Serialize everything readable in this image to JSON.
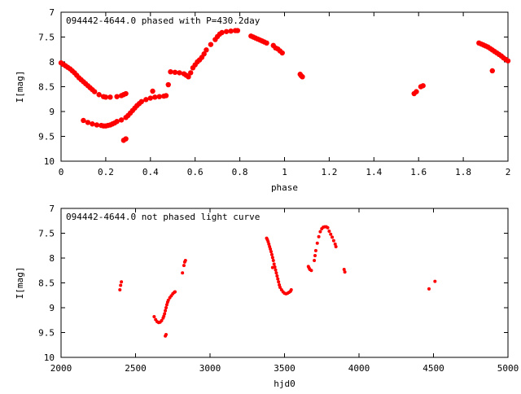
{
  "chart_data": [
    {
      "type": "scatter",
      "title": "094442-4644.0 phased with P=430.2day",
      "xlabel": "phase",
      "ylabel": "I[mag]",
      "xlim": [
        0,
        2
      ],
      "ylim": [
        7,
        10
      ],
      "y_inverted": true,
      "grid": false,
      "marker_color": "#ff0000",
      "x_ticks": [
        "0",
        "0.2",
        "0.4",
        "0.6",
        "0.8",
        "1",
        "1.2",
        "1.4",
        "1.6",
        "1.8",
        "2"
      ],
      "y_ticks": [
        "7",
        "7.5",
        "8",
        "8.5",
        "9",
        "9.5",
        "10"
      ],
      "points": [
        [
          0.0,
          8.02
        ],
        [
          0.01,
          8.05
        ],
        [
          0.02,
          8.08
        ],
        [
          0.03,
          8.11
        ],
        [
          0.04,
          8.14
        ],
        [
          0.05,
          8.18
        ],
        [
          0.06,
          8.22
        ],
        [
          0.07,
          8.27
        ],
        [
          0.08,
          8.32
        ],
        [
          0.09,
          8.36
        ],
        [
          0.1,
          8.4
        ],
        [
          0.11,
          8.44
        ],
        [
          0.12,
          8.48
        ],
        [
          0.13,
          8.52
        ],
        [
          0.14,
          8.56
        ],
        [
          0.15,
          8.6
        ],
        [
          0.17,
          8.66
        ],
        [
          0.19,
          8.7
        ],
        [
          0.2,
          8.71
        ],
        [
          0.22,
          8.71
        ],
        [
          0.25,
          8.7
        ],
        [
          0.27,
          8.68
        ],
        [
          0.28,
          8.66
        ],
        [
          0.29,
          8.64
        ],
        [
          0.1,
          9.18
        ],
        [
          0.12,
          9.22
        ],
        [
          0.14,
          9.25
        ],
        [
          0.16,
          9.27
        ],
        [
          0.18,
          9.28
        ],
        [
          0.19,
          9.29
        ],
        [
          0.2,
          9.29
        ],
        [
          0.21,
          9.28
        ],
        [
          0.22,
          9.27
        ],
        [
          0.23,
          9.25
        ],
        [
          0.24,
          9.23
        ],
        [
          0.25,
          9.2
        ],
        [
          0.27,
          9.17
        ],
        [
          0.29,
          9.12
        ],
        [
          0.3,
          9.08
        ],
        [
          0.31,
          9.03
        ],
        [
          0.32,
          8.98
        ],
        [
          0.33,
          8.93
        ],
        [
          0.34,
          8.88
        ],
        [
          0.35,
          8.84
        ],
        [
          0.36,
          8.8
        ],
        [
          0.38,
          8.76
        ],
        [
          0.4,
          8.73
        ],
        [
          0.42,
          8.71
        ],
        [
          0.44,
          8.7
        ],
        [
          0.46,
          8.69
        ],
        [
          0.47,
          8.68
        ],
        [
          0.28,
          9.58
        ],
        [
          0.29,
          9.55
        ],
        [
          0.41,
          8.59
        ],
        [
          0.48,
          8.46
        ],
        [
          0.49,
          8.2
        ],
        [
          0.51,
          8.21
        ],
        [
          0.53,
          8.22
        ],
        [
          0.55,
          8.24
        ],
        [
          0.56,
          8.27
        ],
        [
          0.57,
          8.3
        ],
        [
          0.58,
          8.22
        ],
        [
          0.59,
          8.12
        ],
        [
          0.6,
          8.06
        ],
        [
          0.61,
          8.0
        ],
        [
          0.62,
          7.96
        ],
        [
          0.63,
          7.91
        ],
        [
          0.64,
          7.84
        ],
        [
          0.65,
          7.76
        ],
        [
          0.67,
          7.65
        ],
        [
          0.69,
          7.55
        ],
        [
          0.7,
          7.49
        ],
        [
          0.71,
          7.44
        ],
        [
          0.72,
          7.41
        ],
        [
          0.74,
          7.39
        ],
        [
          0.76,
          7.38
        ],
        [
          0.78,
          7.37
        ],
        [
          0.79,
          7.37
        ],
        [
          0.85,
          7.48
        ],
        [
          0.86,
          7.5
        ],
        [
          0.87,
          7.52
        ],
        [
          0.88,
          7.54
        ],
        [
          0.89,
          7.56
        ],
        [
          0.9,
          7.58
        ],
        [
          0.91,
          7.6
        ],
        [
          0.92,
          7.62
        ],
        [
          0.95,
          7.67
        ],
        [
          0.96,
          7.72
        ],
        [
          0.97,
          7.74
        ],
        [
          0.98,
          7.78
        ],
        [
          0.99,
          7.82
        ],
        [
          1.07,
          8.25
        ],
        [
          1.075,
          8.28
        ],
        [
          1.08,
          8.3
        ],
        [
          1.58,
          8.64
        ],
        [
          1.59,
          8.6
        ],
        [
          1.61,
          8.5
        ],
        [
          1.62,
          8.48
        ],
        [
          1.87,
          7.62
        ],
        [
          1.88,
          7.64
        ],
        [
          1.89,
          7.66
        ],
        [
          1.9,
          7.68
        ],
        [
          1.91,
          7.7
        ],
        [
          1.92,
          7.73
        ],
        [
          1.93,
          7.76
        ],
        [
          1.94,
          7.79
        ],
        [
          1.95,
          7.82
        ],
        [
          1.96,
          7.85
        ],
        [
          1.97,
          7.88
        ],
        [
          1.98,
          7.92
        ],
        [
          1.99,
          7.95
        ],
        [
          2.0,
          7.98
        ],
        [
          1.93,
          8.18
        ]
      ]
    },
    {
      "type": "scatter",
      "title": "094442-4644.0 not phased light curve",
      "xlabel": "hjd0",
      "ylabel": "I[mag]",
      "xlim": [
        2000,
        5000
      ],
      "ylim": [
        7,
        10
      ],
      "y_inverted": true,
      "grid": false,
      "marker_color": "#ff0000",
      "x_ticks": [
        "2000",
        "2500",
        "3000",
        "3500",
        "4000",
        "4500",
        "5000"
      ],
      "y_ticks": [
        "7",
        "7.5",
        "8",
        "8.5",
        "9",
        "9.5",
        "10"
      ],
      "points": [
        [
          2395,
          8.64
        ],
        [
          2400,
          8.55
        ],
        [
          2405,
          8.48
        ],
        [
          2625,
          9.18
        ],
        [
          2635,
          9.24
        ],
        [
          2645,
          9.28
        ],
        [
          2655,
          9.3
        ],
        [
          2665,
          9.29
        ],
        [
          2675,
          9.26
        ],
        [
          2685,
          9.21
        ],
        [
          2690,
          9.17
        ],
        [
          2695,
          9.12
        ],
        [
          2700,
          9.06
        ],
        [
          2705,
          9.0
        ],
        [
          2710,
          8.94
        ],
        [
          2715,
          8.89
        ],
        [
          2720,
          8.85
        ],
        [
          2730,
          8.8
        ],
        [
          2740,
          8.76
        ],
        [
          2750,
          8.72
        ],
        [
          2760,
          8.69
        ],
        [
          2765,
          8.68
        ],
        [
          2700,
          9.57
        ],
        [
          2705,
          9.54
        ],
        [
          2815,
          8.3
        ],
        [
          2825,
          8.15
        ],
        [
          2830,
          8.08
        ],
        [
          2835,
          8.05
        ],
        [
          3380,
          7.6
        ],
        [
          3385,
          7.63
        ],
        [
          3390,
          7.67
        ],
        [
          3395,
          7.72
        ],
        [
          3400,
          7.77
        ],
        [
          3405,
          7.82
        ],
        [
          3410,
          7.87
        ],
        [
          3415,
          7.93
        ],
        [
          3420,
          7.99
        ],
        [
          3425,
          8.05
        ],
        [
          3430,
          8.12
        ],
        [
          3435,
          8.18
        ],
        [
          3440,
          8.24
        ],
        [
          3445,
          8.3
        ],
        [
          3450,
          8.36
        ],
        [
          3455,
          8.42
        ],
        [
          3460,
          8.48
        ],
        [
          3465,
          8.54
        ],
        [
          3470,
          8.59
        ],
        [
          3480,
          8.64
        ],
        [
          3490,
          8.68
        ],
        [
          3500,
          8.71
        ],
        [
          3510,
          8.72
        ],
        [
          3520,
          8.71
        ],
        [
          3530,
          8.69
        ],
        [
          3540,
          8.67
        ],
        [
          3545,
          8.64
        ],
        [
          3420,
          8.19
        ],
        [
          3660,
          8.17
        ],
        [
          3665,
          8.2
        ],
        [
          3670,
          8.23
        ],
        [
          3680,
          8.25
        ],
        [
          3700,
          8.05
        ],
        [
          3705,
          7.95
        ],
        [
          3710,
          7.85
        ],
        [
          3720,
          7.7
        ],
        [
          3730,
          7.57
        ],
        [
          3740,
          7.47
        ],
        [
          3750,
          7.41
        ],
        [
          3760,
          7.38
        ],
        [
          3770,
          7.37
        ],
        [
          3780,
          7.37
        ],
        [
          3790,
          7.39
        ],
        [
          3800,
          7.46
        ],
        [
          3810,
          7.52
        ],
        [
          3820,
          7.58
        ],
        [
          3830,
          7.65
        ],
        [
          3840,
          7.72
        ],
        [
          3845,
          7.77
        ],
        [
          3900,
          8.23
        ],
        [
          3905,
          8.28
        ],
        [
          4470,
          8.62
        ],
        [
          4510,
          8.47
        ]
      ]
    }
  ]
}
